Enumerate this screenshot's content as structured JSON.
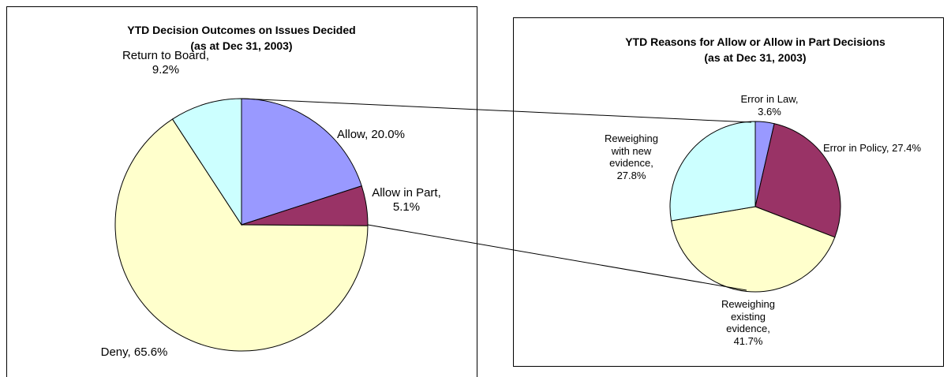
{
  "chart_data": [
    {
      "type": "pie",
      "title": "YTD Decision Outcomes on Issues Decided",
      "subtitle": "(as at Dec 31, 2003)",
      "values": [
        20.0,
        5.1,
        65.6,
        9.2
      ],
      "value_labels": [
        "Allow, 20.0%",
        "Allow in Part, 5.1%",
        "Deny, 65.6%",
        "Return to Board, 9.2%"
      ],
      "colors": [
        "#9999ff",
        "#993366",
        "#ffffcc",
        "#ccffff"
      ]
    },
    {
      "type": "pie",
      "title": "YTD Reasons for Allow or Allow in Part Decisions",
      "subtitle": "(as at Dec 31, 2003)",
      "values": [
        3.6,
        27.4,
        41.7,
        27.8
      ],
      "value_labels": [
        "Error in Law, 3.6%",
        "Error in Policy, 27.4%",
        "Reweighing existing evidence, 41.7%",
        "Reweighing with new evidence, 27.8%"
      ],
      "colors": [
        "#9999ff",
        "#993366",
        "#ffffcc",
        "#ccffff"
      ]
    }
  ]
}
